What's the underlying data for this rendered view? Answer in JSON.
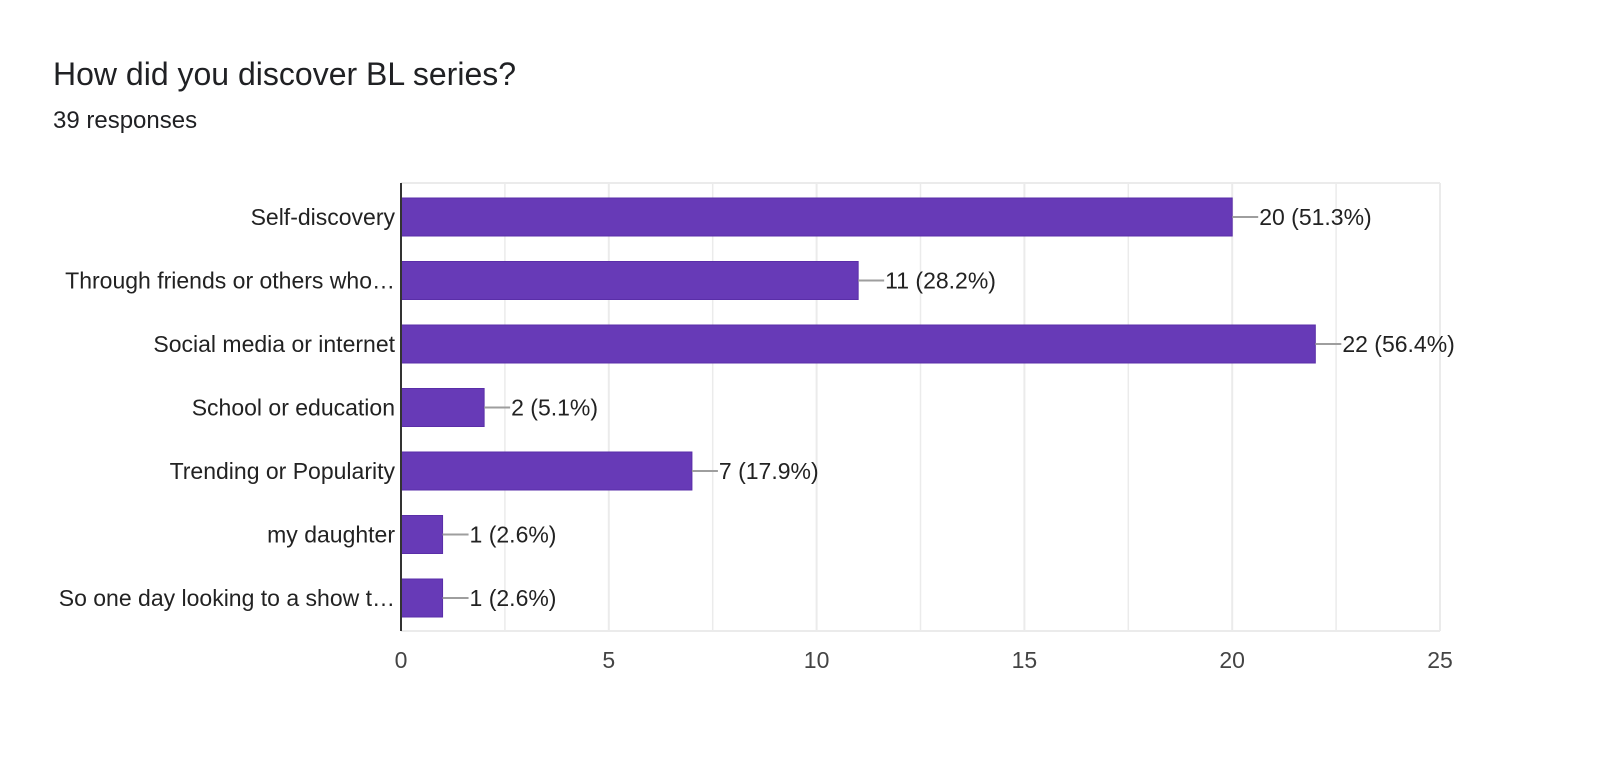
{
  "header": {
    "title": "How did you discover BL series?",
    "subtitle": "39 responses"
  },
  "colors": {
    "bar": "#673ab7",
    "bar_border": "#5a2ea8",
    "grid": "#ebebeb",
    "axis": "#333333",
    "leader": "#9e9e9e",
    "text": "#222222",
    "tick_text": "#444444"
  },
  "chart_data": {
    "type": "bar",
    "orientation": "horizontal",
    "title": "How did you discover BL series?",
    "subtitle": "39 responses",
    "categories": [
      "Self-discovery",
      "Through friends or others who…",
      "Social media or internet",
      "School or education",
      "Trending or Popularity",
      "my daughter",
      "So one day looking to a show t…"
    ],
    "values": [
      20,
      11,
      22,
      2,
      7,
      1,
      1
    ],
    "data_labels": [
      "20 (51.3%)",
      "11 (28.2%)",
      "22 (56.4%)",
      "2 (5.1%)",
      "7 (17.9%)",
      "1 (2.6%)",
      "1 (2.6%)"
    ],
    "xlim": [
      0,
      25
    ],
    "xticks": [
      0,
      5,
      10,
      15,
      20,
      25
    ],
    "xticklabels": [
      "0",
      "5",
      "10",
      "15",
      "20",
      "25"
    ],
    "xlabel": "",
    "ylabel": "",
    "grid": true,
    "legend": "none"
  }
}
